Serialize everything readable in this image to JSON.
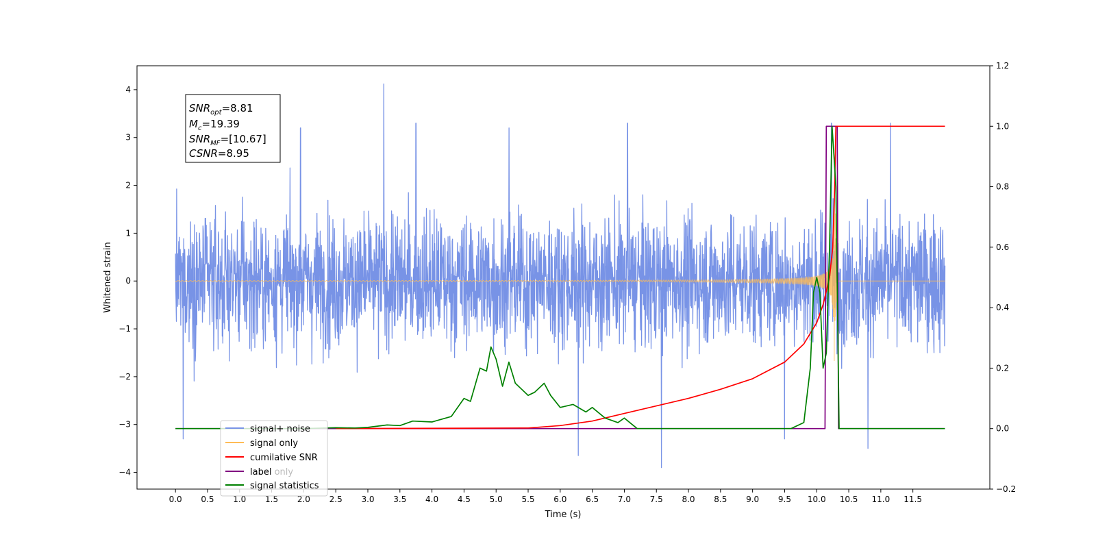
{
  "chart_data": {
    "type": "line",
    "xlabel": "Time (s)",
    "ylabel": "Whitened strain",
    "xlim": [
      -0.6,
      12.7
    ],
    "ylim": [
      -4.35,
      4.5
    ],
    "y2lim": [
      -0.2,
      1.2
    ],
    "xticks": [
      "0.0",
      "0.5",
      "1.0",
      "1.5",
      "2.0",
      "2.5",
      "3.0",
      "3.5",
      "4.0",
      "4.5",
      "5.0",
      "5.5",
      "6.0",
      "6.5",
      "7.0",
      "7.5",
      "8.0",
      "8.5",
      "9.0",
      "9.5",
      "10.0",
      "10.5",
      "11.0",
      "11.5"
    ],
    "yticks": [
      "4",
      "3",
      "2",
      "1",
      "0",
      "−1",
      "−2",
      "−3",
      "−4"
    ],
    "y2ticks": [
      "1.2",
      "1.0",
      "0.8",
      "0.6",
      "0.4",
      "0.2",
      "0.0",
      "−0.2"
    ],
    "grid": false,
    "legend_position": "lower-left",
    "annotation": {
      "snr_opt": {
        "label": "SNR",
        "sub": "opt",
        "value": "=8.81"
      },
      "mc": {
        "label": "M",
        "sub": "c",
        "value": "=19.39"
      },
      "snr_mf": {
        "label": "SNR",
        "sub": "MF",
        "value": "=[10.67]"
      },
      "csnr": {
        "label": "CSNR",
        "sub": "",
        "value": "=8.95"
      }
    },
    "series": [
      {
        "name": "signal+ noise",
        "color": "#7893e6",
        "axis": "left",
        "t_range": [
          0.0,
          12.0
        ],
        "envelope": {
          "typical_min": -1.9,
          "typical_max": 1.9,
          "peak_max": 4.12,
          "peak_min": -3.9
        },
        "spikes": [
          {
            "t": 3.25,
            "v": 4.12
          },
          {
            "t": 7.58,
            "v": -3.9
          },
          {
            "t": 10.8,
            "v": -3.5
          },
          {
            "t": 6.28,
            "v": -3.65
          },
          {
            "t": 11.15,
            "v": 3.3
          },
          {
            "t": 10.23,
            "v": 3.3
          },
          {
            "t": 5.2,
            "v": 3.2
          },
          {
            "t": 7.05,
            "v": 3.3
          },
          {
            "t": 1.95,
            "v": 3.2
          },
          {
            "t": 0.12,
            "v": -3.3
          },
          {
            "t": 9.5,
            "v": -3.3
          },
          {
            "t": 3.75,
            "v": 3.3
          }
        ]
      },
      {
        "name": "signal only",
        "color": "#ffbb55",
        "axis": "left",
        "t_range": [
          0.0,
          12.0
        ],
        "merger_time": 10.28,
        "peak_amplitude": 2.4
      },
      {
        "name": "cumilative SNR",
        "color": "#ff0000",
        "axis": "right",
        "points": [
          [
            2.5,
            0.0
          ],
          [
            5.5,
            0.002
          ],
          [
            6.0,
            0.01
          ],
          [
            6.5,
            0.025
          ],
          [
            7.0,
            0.05
          ],
          [
            7.5,
            0.075
          ],
          [
            8.0,
            0.1
          ],
          [
            8.5,
            0.13
          ],
          [
            9.0,
            0.165
          ],
          [
            9.5,
            0.22
          ],
          [
            9.8,
            0.28
          ],
          [
            10.0,
            0.35
          ],
          [
            10.1,
            0.41
          ],
          [
            10.2,
            0.5
          ],
          [
            10.25,
            0.6
          ],
          [
            10.28,
            0.8
          ],
          [
            10.3,
            1.0
          ],
          [
            12.0,
            1.0
          ]
        ]
      },
      {
        "name": "label",
        "color": "#800080",
        "axis": "right",
        "points": [
          [
            0.0,
            0.0
          ],
          [
            10.13,
            0.0
          ],
          [
            10.15,
            1.0
          ],
          [
            10.32,
            1.0
          ],
          [
            10.34,
            0.0
          ],
          [
            12.0,
            0.0
          ]
        ]
      },
      {
        "name": "signal statistics",
        "color": "#008000",
        "axis": "right",
        "points": [
          [
            0.0,
            0.0
          ],
          [
            2.0,
            0.0
          ],
          [
            2.5,
            0.003
          ],
          [
            2.8,
            0.002
          ],
          [
            3.0,
            0.004
          ],
          [
            3.3,
            0.012
          ],
          [
            3.5,
            0.01
          ],
          [
            3.7,
            0.025
          ],
          [
            4.0,
            0.022
          ],
          [
            4.3,
            0.04
          ],
          [
            4.5,
            0.1
          ],
          [
            4.6,
            0.09
          ],
          [
            4.75,
            0.2
          ],
          [
            4.85,
            0.19
          ],
          [
            4.92,
            0.27
          ],
          [
            5.0,
            0.23
          ],
          [
            5.1,
            0.14
          ],
          [
            5.2,
            0.22
          ],
          [
            5.3,
            0.15
          ],
          [
            5.5,
            0.11
          ],
          [
            5.6,
            0.12
          ],
          [
            5.75,
            0.15
          ],
          [
            5.85,
            0.11
          ],
          [
            6.0,
            0.07
          ],
          [
            6.2,
            0.08
          ],
          [
            6.4,
            0.055
          ],
          [
            6.5,
            0.07
          ],
          [
            6.7,
            0.035
          ],
          [
            6.9,
            0.02
          ],
          [
            7.0,
            0.035
          ],
          [
            7.2,
            0.0
          ],
          [
            9.6,
            0.0
          ],
          [
            9.8,
            0.02
          ],
          [
            9.9,
            0.2
          ],
          [
            9.95,
            0.45
          ],
          [
            10.0,
            0.5
          ],
          [
            10.05,
            0.45
          ],
          [
            10.1,
            0.2
          ],
          [
            10.15,
            0.25
          ],
          [
            10.2,
            0.6
          ],
          [
            10.24,
            1.0
          ],
          [
            10.3,
            0.8
          ],
          [
            10.35,
            0.0
          ],
          [
            12.0,
            0.0
          ]
        ]
      }
    ],
    "legend": [
      "signal+ noise",
      "signal only",
      "cumilative SNR",
      "label only",
      "label",
      "signal statistics"
    ]
  }
}
